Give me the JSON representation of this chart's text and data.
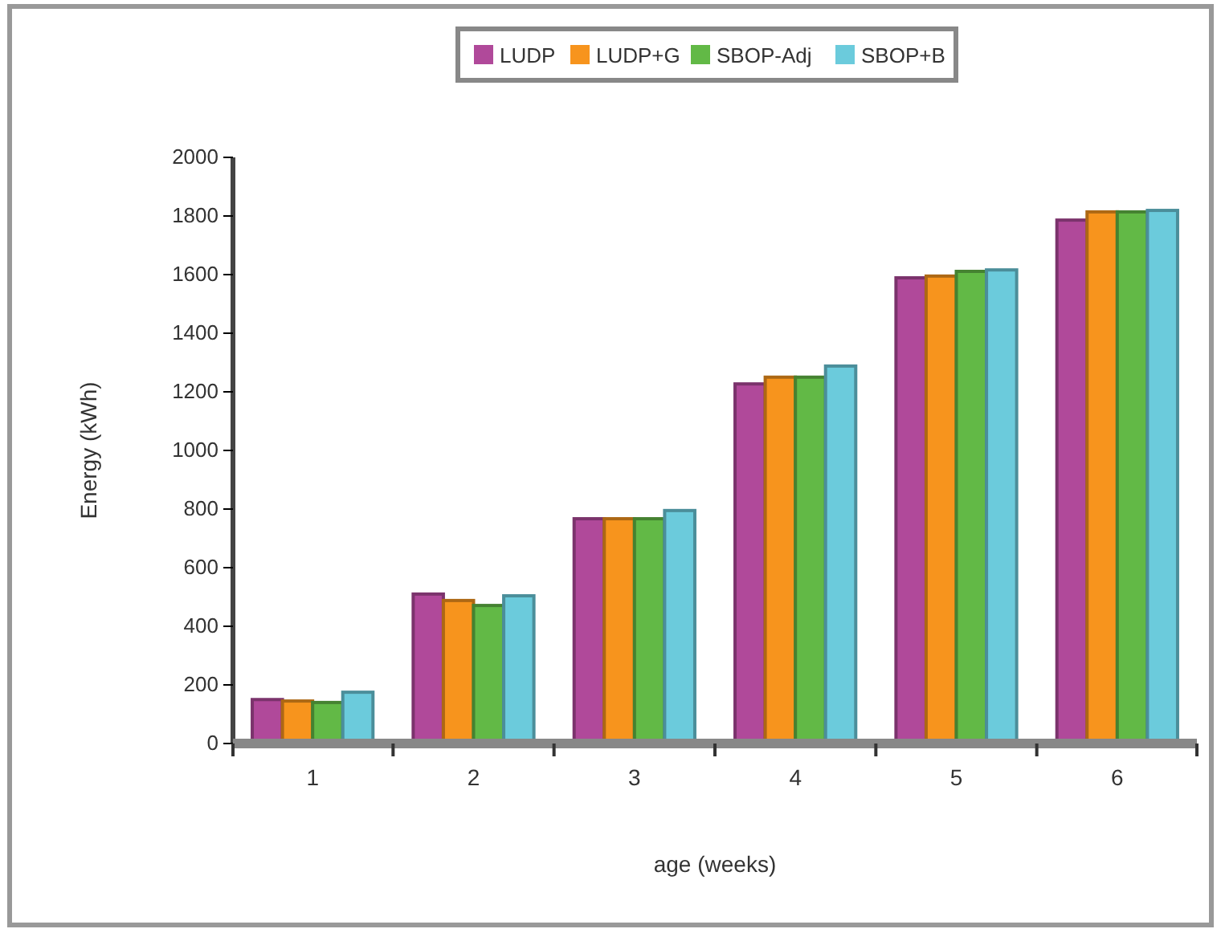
{
  "chart_data": {
    "type": "bar",
    "xlabel": "age (weeks)",
    "ylabel": "Energy (kWh)",
    "categories": [
      "1",
      "2",
      "3",
      "4",
      "5",
      "6"
    ],
    "series": [
      {
        "name": "LUDP",
        "color": "#b0499a",
        "values": [
          150,
          510,
          767,
          1227,
          1589,
          1786
        ]
      },
      {
        "name": "LUDP+G",
        "color": "#f7941d",
        "values": [
          145,
          488,
          767,
          1250,
          1595,
          1814
        ]
      },
      {
        "name": "SBOP-Adj",
        "color": "#62b946",
        "values": [
          140,
          471,
          767,
          1250,
          1611,
          1814
        ]
      },
      {
        "name": "SBOP+B",
        "color": "#6bcbdc",
        "values": [
          175,
          504,
          795,
          1288,
          1616,
          1819
        ]
      }
    ],
    "ylim": [
      0,
      2000
    ],
    "yticks": [
      0,
      200,
      400,
      600,
      800,
      1000,
      1200,
      1400,
      1600,
      1800,
      2000
    ],
    "grid": false,
    "legend": "top"
  }
}
